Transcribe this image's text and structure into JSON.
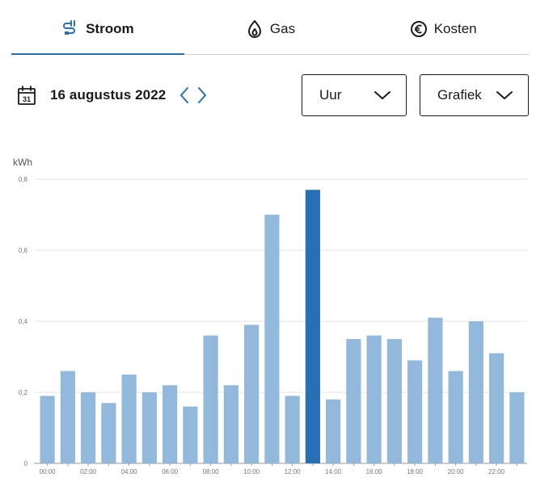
{
  "tabs": [
    {
      "label": "Stroom",
      "icon": "plug-icon",
      "active": true
    },
    {
      "label": "Gas",
      "icon": "flame-icon",
      "active": false
    },
    {
      "label": "Kosten",
      "icon": "euro-icon",
      "active": false
    }
  ],
  "date": {
    "label": "16 augustus 2022"
  },
  "period_select": {
    "value": "Uur"
  },
  "view_select": {
    "value": "Grafiek"
  },
  "colors": {
    "accent": "#2670b3",
    "bar": "#92b9dc",
    "bar_selected": "#2670b3"
  },
  "chart_data": {
    "type": "bar",
    "ylabel": "kWh",
    "ylim": [
      0,
      0.8
    ],
    "y_ticks": [
      {
        "value": 0,
        "label": "0"
      },
      {
        "value": 0.2,
        "label": "0,2"
      },
      {
        "value": 0.4,
        "label": "0,4"
      },
      {
        "value": 0.6,
        "label": "0,6"
      },
      {
        "value": 0.8,
        "label": "0,8"
      }
    ],
    "categories": [
      "00:00",
      "01:00",
      "02:00",
      "03:00",
      "04:00",
      "05:00",
      "06:00",
      "07:00",
      "08:00",
      "09:00",
      "10:00",
      "11:00",
      "12:00",
      "13:00",
      "14:00",
      "15:00",
      "16:00",
      "17:00",
      "18:00",
      "19:00",
      "20:00",
      "21:00",
      "22:00",
      "23:00"
    ],
    "x_tick_labels": [
      "00:00",
      "",
      "02:00",
      "",
      "04:00",
      "",
      "06:00",
      "",
      "08:00",
      "",
      "10:00",
      "",
      "12:00",
      "",
      "14:00",
      "",
      "16:00",
      "",
      "18:00",
      "",
      "20:00",
      "",
      "22:00",
      ""
    ],
    "values": [
      0.19,
      0.26,
      0.2,
      0.17,
      0.25,
      0.2,
      0.22,
      0.16,
      0.36,
      0.22,
      0.39,
      0.7,
      0.19,
      0.77,
      0.18,
      0.35,
      0.36,
      0.35,
      0.29,
      0.41,
      0.26,
      0.4,
      0.31,
      0.2
    ],
    "selected_index": 13
  }
}
